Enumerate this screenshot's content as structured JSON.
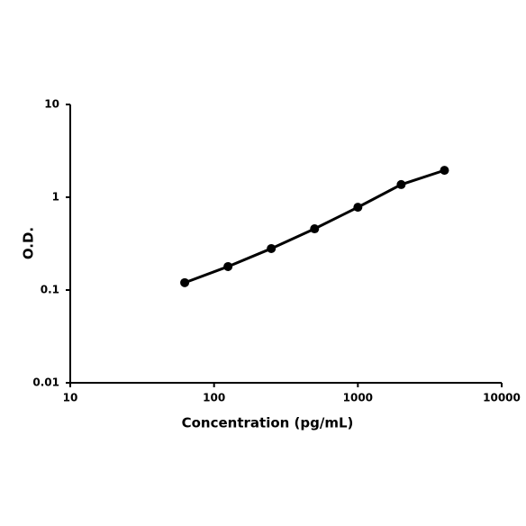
{
  "chart_data": {
    "type": "line",
    "x": [
      62.5,
      125,
      250,
      500,
      1000,
      2000,
      4000
    ],
    "values": [
      0.12,
      0.179,
      0.28,
      0.457,
      0.78,
      1.37,
      1.95
    ],
    "color": "#000000",
    "xlabel": "Concentration (pg/mL)",
    "ylabel": "O.D.",
    "xlim": [
      10,
      10000
    ],
    "ylim": [
      0.01,
      10
    ],
    "xticks": [
      10,
      100,
      1000,
      10000
    ],
    "yticks": [
      0.01,
      0.1,
      1,
      10
    ],
    "xlog": true,
    "ylog": true,
    "grid": false
  }
}
